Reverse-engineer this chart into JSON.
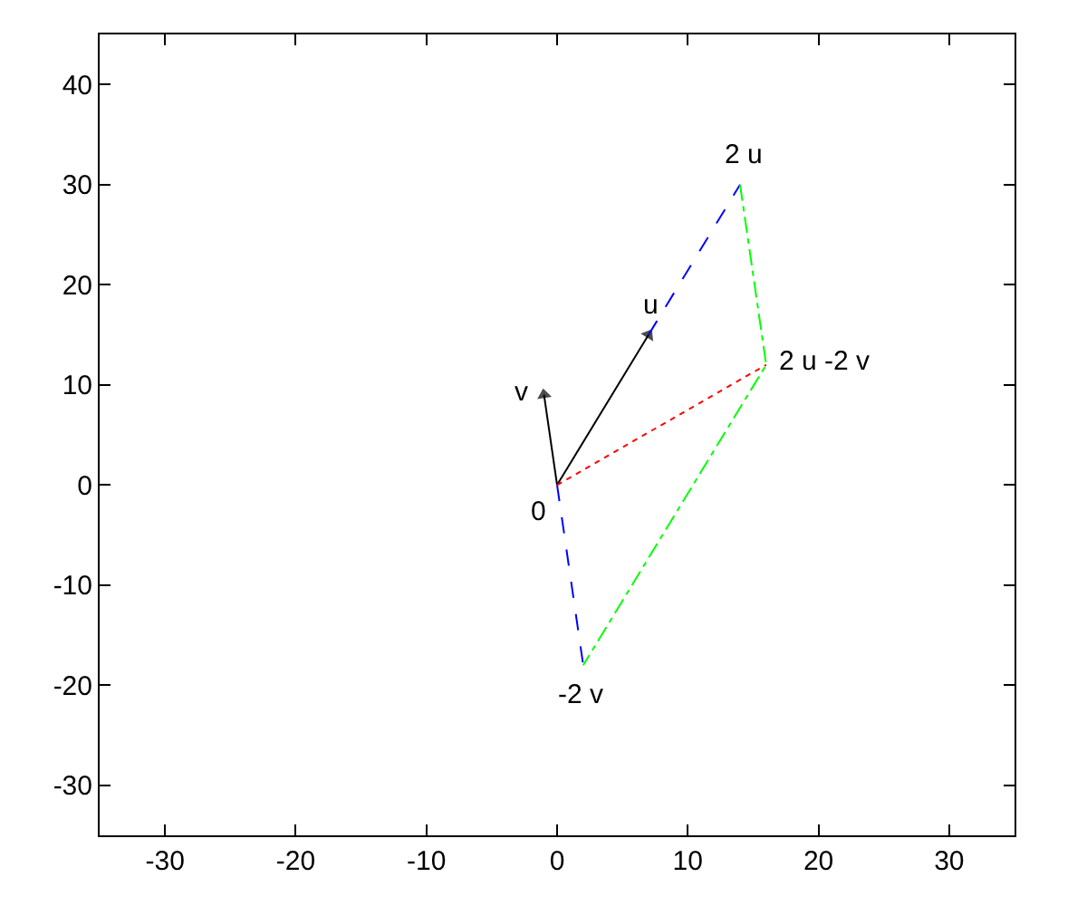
{
  "chart_data": {
    "type": "line",
    "xlim": [
      -35,
      35
    ],
    "xticks": [
      -30,
      -20,
      -10,
      0,
      10,
      20,
      30
    ],
    "ylim": [
      -35,
      45
    ],
    "yticks": [
      -30,
      -20,
      -10,
      0,
      10,
      20,
      30,
      40
    ],
    "grid": false,
    "series": [
      {
        "color": "#000000",
        "x": [
          0,
          7
        ],
        "values": [
          0,
          15
        ],
        "line_style": "solid",
        "marker": "triangle"
      },
      {
        "color": "#000000",
        "x": [
          0,
          -1
        ],
        "values": [
          0,
          9
        ],
        "line_style": "solid",
        "marker": "triangle"
      },
      {
        "color": "#0000ff",
        "x": [
          0,
          2
        ],
        "values": [
          0,
          -18
        ],
        "line_style": "dashed"
      },
      {
        "color": "#0000ff",
        "x": [
          7,
          14
        ],
        "values": [
          15,
          30
        ],
        "line_style": "dashed"
      },
      {
        "color": "#00ff00",
        "x": [
          14,
          16,
          2
        ],
        "values": [
          30,
          12,
          -18
        ],
        "line_style": "dashdot"
      },
      {
        "color": "#ff0000",
        "x": [
          0,
          16
        ],
        "values": [
          0,
          12
        ],
        "line_style": "dotted"
      }
    ],
    "annotations": [
      {
        "text": "2 u",
        "x": 14,
        "y": 30
      },
      {
        "text": "u",
        "x": 7,
        "y": 15
      },
      {
        "text": "v",
        "x": -1,
        "y": 9
      },
      {
        "text": "2 u -2 v",
        "x": 16,
        "y": 12
      },
      {
        "text": "0",
        "x": 0,
        "y": 0
      },
      {
        "text": "-2 v",
        "x": 2,
        "y": -18
      }
    ]
  }
}
